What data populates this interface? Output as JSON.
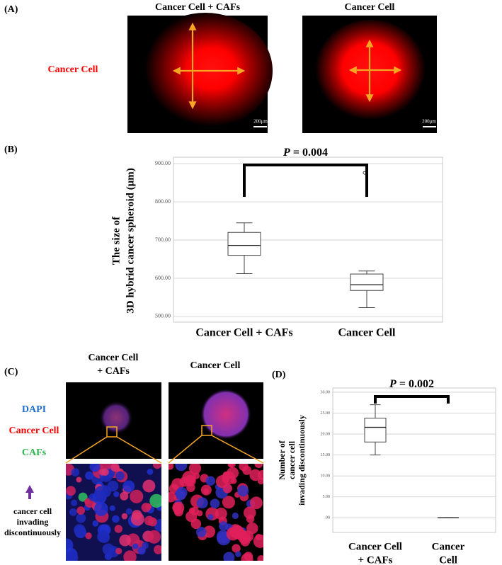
{
  "panel_labels": [
    "(A)",
    "(B)",
    "(C)",
    "(D)"
  ],
  "panel_a": {
    "columns": [
      "Cancer Cell + CAFs",
      "Cancer Cell"
    ],
    "row_label": "Cancer Cell",
    "scale_bars": [
      "200μm",
      "200μm"
    ]
  },
  "panel_c": {
    "columns": [
      [
        "Cancer Cell",
        "+ CAFs"
      ],
      [
        "Cancer Cell"
      ]
    ],
    "legend": [
      "DAPI",
      "Cancer Cell",
      "CAFs"
    ],
    "arrow_note": [
      "cancer cell",
      "invading",
      "discontinuously"
    ]
  },
  "chart_data": [
    {
      "type": "box",
      "y_label": [
        "The size of",
        "3D hybrid cancer spheroid (μm)"
      ],
      "categories": [
        [
          "Cancer Cell + CAFs"
        ],
        [
          "Cancer Cell"
        ]
      ],
      "boxes": [
        {
          "min": 612,
          "q1": 660,
          "median": 686,
          "q3": 720,
          "max": 745,
          "outliers": []
        },
        {
          "min": 523,
          "q1": 568,
          "median": 583,
          "q3": 611,
          "max": 619,
          "outliers": [
            876
          ]
        }
      ],
      "ylim": [
        485,
        917
      ],
      "yticks": [
        {
          "value": 500,
          "label": "500.00"
        },
        {
          "value": 600,
          "label": "600.00"
        },
        {
          "value": 700,
          "label": "700.00"
        },
        {
          "value": 800,
          "label": "800.00"
        },
        {
          "value": 900,
          "label": "900.00"
        }
      ],
      "grid": true,
      "p_symbol": "P",
      "p_value": "= 0.004"
    },
    {
      "type": "box",
      "y_label": [
        "Number of",
        "cancer cell",
        "invading discontinuously"
      ],
      "categories": [
        [
          "Cancer Cell",
          "+ CAFs"
        ],
        [
          "Cancer",
          "Cell"
        ]
      ],
      "boxes": [
        {
          "min": 15,
          "q1": 18.1,
          "median": 21.6,
          "q3": 23.8,
          "max": 27,
          "outliers": []
        },
        {
          "min": 0,
          "q1": 0,
          "median": 0,
          "q3": 0,
          "max": 0,
          "outliers": []
        }
      ],
      "ylim": [
        -3.5,
        31
      ],
      "yticks": [
        {
          "value": 0,
          "label": ".00"
        },
        {
          "value": 5,
          "label": "5.00"
        },
        {
          "value": 10,
          "label": "10.00"
        },
        {
          "value": 15,
          "label": "15.00"
        },
        {
          "value": 20,
          "label": "20.00"
        },
        {
          "value": 25,
          "label": "25.00"
        },
        {
          "value": 30,
          "label": "30.00"
        }
      ],
      "grid": true,
      "p_symbol": "P",
      "p_value": "= 0.002"
    }
  ]
}
